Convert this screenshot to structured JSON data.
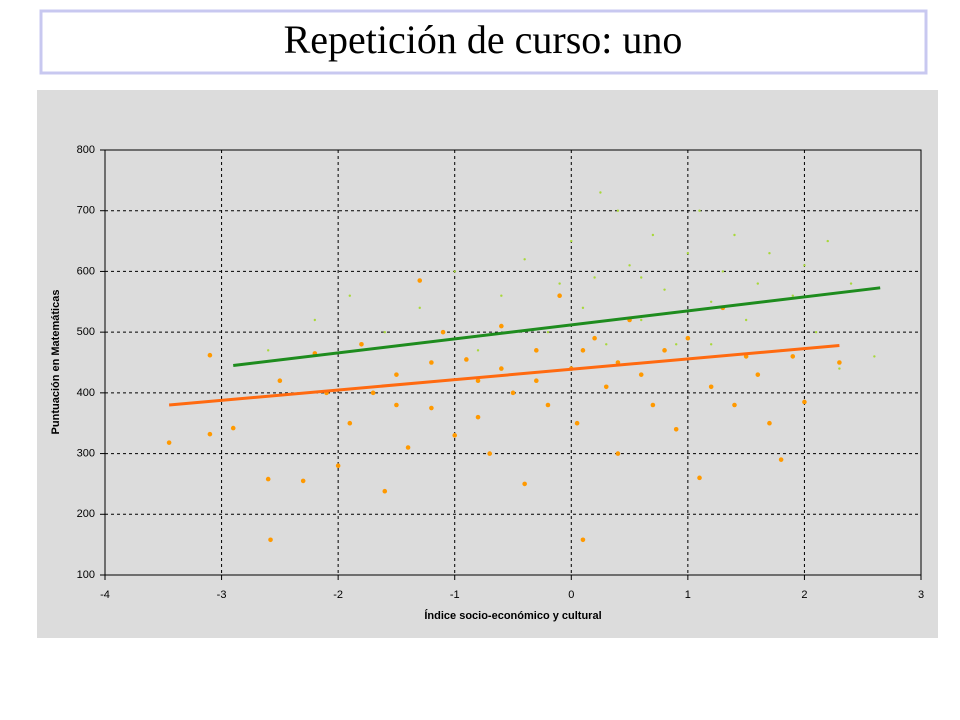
{
  "chart_data": {
    "type": "scatter",
    "title": "Repetición de curso: uno",
    "xlabel": "Índice socio-económico y cultural",
    "ylabel": "Puntuación en Matemáticas",
    "xlim": [
      -4,
      3
    ],
    "ylim": [
      100,
      800
    ],
    "xticks": [
      -4,
      -3,
      -2,
      -1,
      0,
      1,
      2,
      3
    ],
    "yticks": [
      100,
      200,
      300,
      400,
      500,
      600,
      700,
      800
    ],
    "grid": true,
    "series": [
      {
        "type": "scatter",
        "color": "#a8d83a",
        "x": [
          -2.6,
          -2.2,
          -1.9,
          -1.6,
          -1.3,
          -1.0,
          -0.8,
          -0.6,
          -0.4,
          -0.2,
          0.0,
          0.1,
          0.2,
          0.3,
          0.4,
          0.5,
          0.6,
          0.7,
          0.8,
          0.9,
          1.0,
          1.1,
          1.2,
          1.3,
          1.4,
          1.5,
          1.6,
          1.7,
          1.8,
          1.9,
          2.0,
          2.1,
          2.2,
          2.3,
          2.4,
          2.6,
          0.25,
          -0.1,
          0.6,
          1.2
        ],
        "y": [
          470,
          520,
          560,
          500,
          540,
          600,
          470,
          560,
          620,
          500,
          650,
          540,
          590,
          480,
          700,
          610,
          520,
          660,
          570,
          480,
          630,
          700,
          550,
          600,
          660,
          520,
          580,
          630,
          470,
          560,
          610,
          500,
          650,
          440,
          580,
          460,
          730,
          580,
          590,
          480
        ]
      },
      {
        "type": "scatter",
        "color": "#ff9900",
        "x": [
          -3.45,
          -3.1,
          -3.1,
          -2.9,
          -2.6,
          -2.58,
          -2.5,
          -2.3,
          -2.2,
          -2.0,
          -1.9,
          -1.8,
          -1.7,
          -1.6,
          -1.5,
          -1.4,
          -1.3,
          -1.2,
          -1.1,
          -1.0,
          -0.9,
          -0.8,
          -0.7,
          -0.6,
          -0.5,
          -0.4,
          -0.3,
          -0.2,
          -0.1,
          0.0,
          0.05,
          0.1,
          0.2,
          0.3,
          0.4,
          0.5,
          0.6,
          0.7,
          0.8,
          0.9,
          1.0,
          1.1,
          1.2,
          1.3,
          1.4,
          1.5,
          1.6,
          1.7,
          1.8,
          1.9,
          2.0,
          2.3,
          -1.2,
          -0.8,
          -0.3,
          0.1,
          -0.6,
          0.4,
          -1.5,
          -2.1
        ],
        "y": [
          318,
          462,
          332,
          342,
          258,
          158,
          420,
          255,
          465,
          280,
          350,
          480,
          400,
          238,
          430,
          310,
          585,
          375,
          500,
          330,
          455,
          420,
          300,
          510,
          400,
          250,
          470,
          380,
          560,
          440,
          350,
          158,
          490,
          410,
          300,
          520,
          430,
          380,
          470,
          340,
          490,
          260,
          410,
          540,
          380,
          460,
          430,
          350,
          290,
          460,
          385,
          450,
          450,
          360,
          420,
          470,
          440,
          450,
          380,
          400
        ]
      },
      {
        "type": "line",
        "color": "#1e8c1e",
        "x": [
          -2.9,
          2.65
        ],
        "y": [
          445,
          573
        ]
      },
      {
        "type": "line",
        "color": "#ff6a10",
        "x": [
          -3.45,
          2.3
        ],
        "y": [
          380,
          478
        ]
      }
    ]
  }
}
